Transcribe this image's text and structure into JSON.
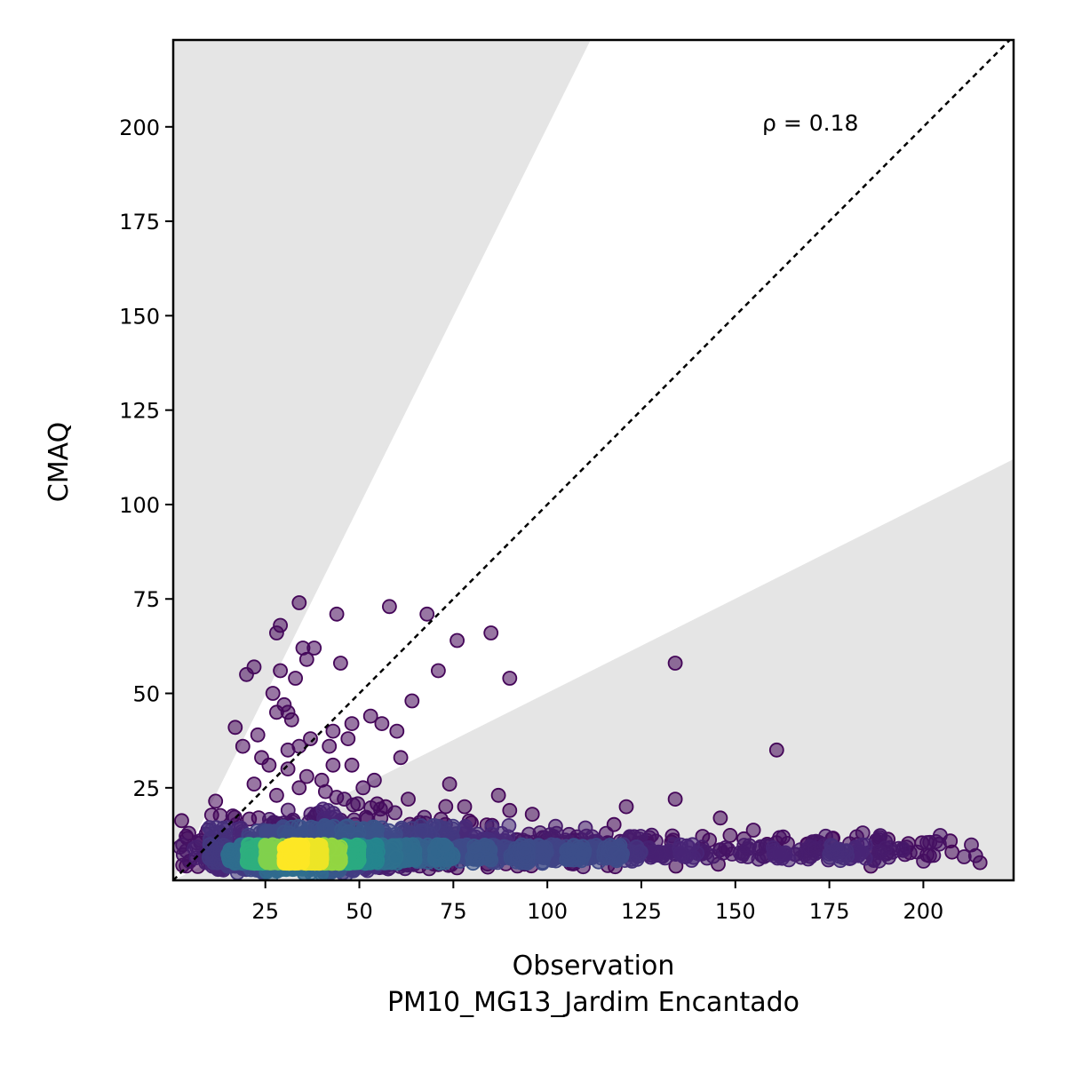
{
  "chart_data": {
    "type": "scatter",
    "xlabel": "Observation",
    "xlabel_line2": "PM10_MG13_Jardim Encantado",
    "ylabel": "CMAQ",
    "annotation": "ρ = 0.18",
    "xlim": [
      0.5,
      224
    ],
    "ylim": [
      0.5,
      223
    ],
    "x_ticks": [
      25,
      50,
      75,
      100,
      125,
      150,
      175,
      200
    ],
    "y_ticks": [
      25,
      50,
      75,
      100,
      125,
      150,
      175,
      200
    ],
    "reference_line": "1:1",
    "shaded_band_slopes": [
      0.5,
      2
    ],
    "colormap": "viridis",
    "point_color_low": "#440154",
    "point_color_high": "#fde725",
    "band_color": "#e5e5e5",
    "grid": false,
    "outliers": [
      [
        34,
        74
      ],
      [
        44,
        71
      ],
      [
        58,
        73
      ],
      [
        68,
        71
      ],
      [
        29,
        68
      ],
      [
        28,
        66
      ],
      [
        76,
        64
      ],
      [
        85,
        66
      ],
      [
        35,
        62
      ],
      [
        38,
        62
      ],
      [
        36,
        59
      ],
      [
        45,
        58
      ],
      [
        134,
        58
      ],
      [
        22,
        57
      ],
      [
        29,
        56
      ],
      [
        20,
        55
      ],
      [
        33,
        54
      ],
      [
        71,
        56
      ],
      [
        90,
        54
      ],
      [
        27,
        50
      ],
      [
        64,
        48
      ],
      [
        30,
        47
      ],
      [
        31,
        45
      ],
      [
        32,
        43
      ],
      [
        28,
        45
      ],
      [
        53,
        44
      ],
      [
        56,
        42
      ],
      [
        60,
        40
      ],
      [
        48,
        42
      ],
      [
        17,
        41
      ],
      [
        23,
        39
      ],
      [
        43,
        40
      ],
      [
        47,
        38
      ],
      [
        37,
        38
      ],
      [
        34,
        36
      ],
      [
        19,
        36
      ],
      [
        31,
        35
      ],
      [
        42,
        36
      ],
      [
        61,
        33
      ],
      [
        24,
        33
      ],
      [
        26,
        31
      ],
      [
        43,
        31
      ],
      [
        48,
        31
      ],
      [
        31,
        30
      ],
      [
        36,
        28
      ],
      [
        40,
        27
      ],
      [
        54,
        27
      ],
      [
        74,
        26
      ],
      [
        22,
        26
      ],
      [
        51,
        25
      ],
      [
        34,
        25
      ],
      [
        87,
        23
      ],
      [
        134,
        22
      ],
      [
        121,
        20
      ],
      [
        78,
        20
      ],
      [
        90,
        19
      ],
      [
        161,
        35
      ],
      [
        146,
        17
      ],
      [
        96,
        18
      ],
      [
        41,
        24
      ],
      [
        46,
        22
      ],
      [
        28,
        23
      ],
      [
        63,
        22
      ],
      [
        57,
        20
      ]
    ],
    "density_clusters": [
      {
        "cx": 34,
        "cy": 6,
        "sx": 18,
        "sy": 4,
        "n": 1500
      },
      {
        "cx": 60,
        "cy": 8,
        "sx": 35,
        "sy": 5,
        "n": 800
      },
      {
        "cx": 110,
        "cy": 8,
        "sx": 30,
        "sy": 4,
        "n": 350
      },
      {
        "cx": 175,
        "cy": 8,
        "sx": 30,
        "sy": 4,
        "n": 160
      },
      {
        "cx": 40,
        "cy": 12,
        "sx": 25,
        "sy": 6,
        "n": 300
      }
    ]
  }
}
